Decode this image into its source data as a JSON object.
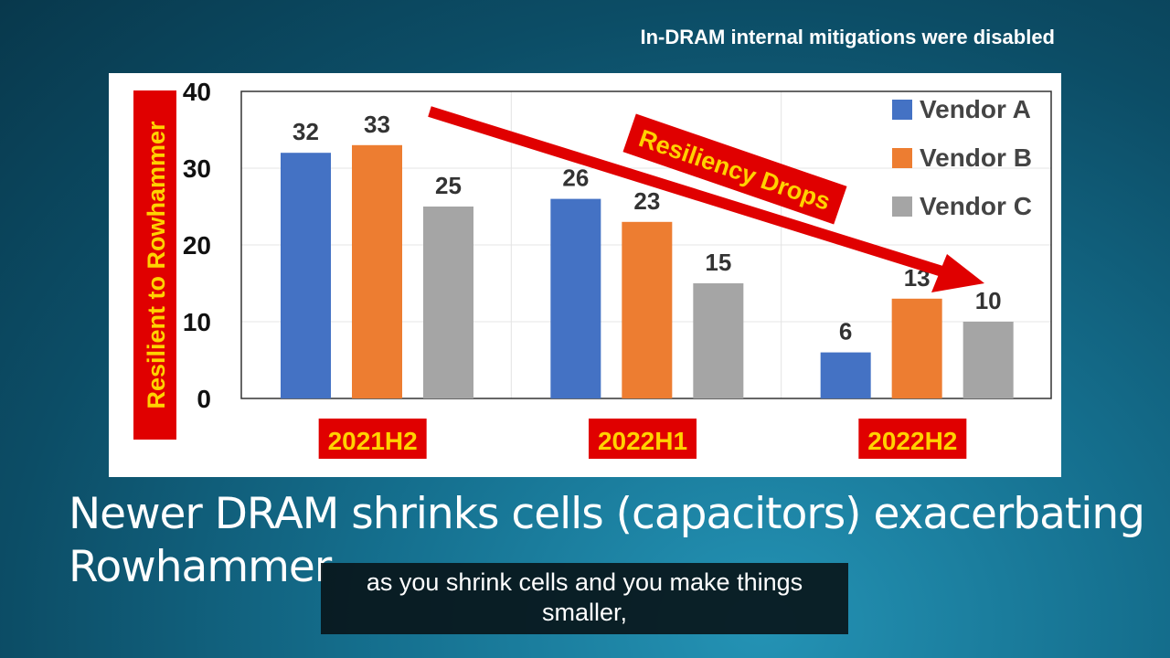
{
  "slide": {
    "note": "In-DRAM internal mitigations were disabled",
    "title": "Newer DRAM shrinks cells (capacitors) exacerbating Rowhammer",
    "caption": "as you shrink cells and you make things smaller,"
  },
  "chart_data": {
    "type": "bar",
    "categories": [
      "2021H2",
      "2022H1",
      "2022H2"
    ],
    "series": [
      {
        "name": "Vendor A",
        "values": [
          32,
          26,
          6
        ],
        "color": "#4472c4"
      },
      {
        "name": "Vendor B",
        "values": [
          33,
          23,
          13
        ],
        "color": "#ed7d31"
      },
      {
        "name": "Vendor C",
        "values": [
          25,
          15,
          10
        ],
        "color": "#a5a5a5"
      }
    ],
    "ylabel": "Resilient to Rowhammer",
    "ylim": [
      0,
      40
    ],
    "yticks": [
      "0",
      "10",
      "20",
      "30",
      "40"
    ],
    "annotation": "Resiliency Drops",
    "legend": "top-right",
    "grid": true,
    "label_bg_color": "#e00000",
    "label_text_color": "#ffd200"
  }
}
